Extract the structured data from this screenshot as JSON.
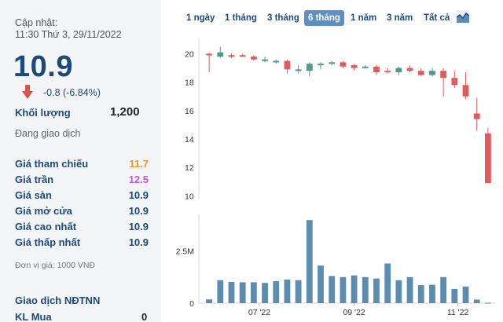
{
  "quote": {
    "updated_label": "Cập nhật:",
    "updated_time": "11:30 Thứ 3, 29/11/2022",
    "price": "10.9",
    "change": "-0.8 (-6.84%)",
    "volume_label": "Khối lượng",
    "volume_value": "1,200",
    "status": "Đang giao dịch",
    "rows": [
      {
        "label": "Giá tham chiếu",
        "value": "11.7",
        "color": "#e8952a"
      },
      {
        "label": "Giá trần",
        "value": "12.5",
        "color": "#c057d6"
      },
      {
        "label": "Giá sàn",
        "value": "10.9",
        "color": "#1c4a7a"
      },
      {
        "label": "Giá mở cửa",
        "value": "10.9",
        "color": "#1c4a7a"
      },
      {
        "label": "Giá cao nhất",
        "value": "10.9",
        "color": "#1c4a7a"
      },
      {
        "label": "Giá thấp nhất",
        "value": "10.9",
        "color": "#1c4a7a"
      }
    ],
    "unit_note": "Đơn vị giá: 1000 VNĐ",
    "foreign_label": "Giao dịch NĐTNN",
    "buy_label": "KL Mua",
    "buy_value": "0"
  },
  "tabs": [
    {
      "label": "1 ngày",
      "active": false
    },
    {
      "label": "1 tháng",
      "active": false
    },
    {
      "label": "3 tháng",
      "active": false
    },
    {
      "label": "6 tháng",
      "active": true
    },
    {
      "label": "1 năm",
      "active": false
    },
    {
      "label": "3 năm",
      "active": false
    },
    {
      "label": "Tất cả",
      "active": false
    }
  ],
  "colors": {
    "up": "#4f9a8a",
    "down": "#e05c5c",
    "volume": "#5b8db3",
    "accent": "#1c4a7a"
  },
  "chart_data": {
    "type": "candlestick",
    "price_axis": {
      "ticks": [
        10,
        12,
        14,
        16,
        18,
        20
      ],
      "range": [
        9.8,
        20.8
      ]
    },
    "volume_axis": {
      "ticks": [
        "0",
        "2.5M"
      ],
      "tick_values": [
        0,
        2500000
      ],
      "range": [
        0,
        3800000
      ]
    },
    "x_tick_labels": [
      {
        "label": "07 '22",
        "index": 4.5
      },
      {
        "label": "09 '22",
        "index": 13
      },
      {
        "label": "11 '22",
        "index": 22.3
      }
    ],
    "candles": [
      {
        "o": 20.0,
        "c": 19.9,
        "h": 20.1,
        "l": 18.7
      },
      {
        "o": 19.8,
        "c": 20.1,
        "h": 20.5,
        "l": 19.7
      },
      {
        "o": 19.9,
        "c": 19.8,
        "h": 20.0,
        "l": 19.7
      },
      {
        "o": 19.9,
        "c": 19.8,
        "h": 20.0,
        "l": 19.8
      },
      {
        "o": 19.8,
        "c": 19.6,
        "h": 19.9,
        "l": 19.5
      },
      {
        "o": 19.6,
        "c": 19.6,
        "h": 19.8,
        "l": 19.4
      },
      {
        "o": 19.5,
        "c": 19.5,
        "h": 19.6,
        "l": 19.3
      },
      {
        "o": 19.5,
        "c": 18.9,
        "h": 19.6,
        "l": 18.6
      },
      {
        "o": 18.9,
        "c": 18.9,
        "h": 19.2,
        "l": 18.6
      },
      {
        "o": 18.8,
        "c": 19.3,
        "h": 19.4,
        "l": 18.4
      },
      {
        "o": 19.3,
        "c": 19.3,
        "h": 19.4,
        "l": 18.9
      },
      {
        "o": 19.3,
        "c": 19.4,
        "h": 19.5,
        "l": 19.2
      },
      {
        "o": 19.4,
        "c": 19.1,
        "h": 19.5,
        "l": 19.0
      },
      {
        "o": 19.2,
        "c": 19.0,
        "h": 19.3,
        "l": 18.8
      },
      {
        "o": 19.1,
        "c": 19.1,
        "h": 19.2,
        "l": 19.0
      },
      {
        "o": 19.1,
        "c": 18.7,
        "h": 19.2,
        "l": 18.5
      },
      {
        "o": 18.8,
        "c": 18.7,
        "h": 19.0,
        "l": 18.6
      },
      {
        "o": 18.7,
        "c": 19.0,
        "h": 19.1,
        "l": 18.5
      },
      {
        "o": 19.0,
        "c": 18.8,
        "h": 19.2,
        "l": 18.7
      },
      {
        "o": 18.8,
        "c": 18.5,
        "h": 19.0,
        "l": 18.4
      },
      {
        "o": 18.5,
        "c": 18.8,
        "h": 19.0,
        "l": 18.4
      },
      {
        "o": 18.8,
        "c": 18.3,
        "h": 19.0,
        "l": 17.0
      },
      {
        "o": 18.3,
        "c": 17.8,
        "h": 18.8,
        "l": 17.6
      },
      {
        "o": 17.8,
        "c": 17.0,
        "h": 18.7,
        "l": 16.8
      },
      {
        "o": 15.8,
        "c": 15.4,
        "h": 16.9,
        "l": 14.6
      },
      {
        "o": 14.4,
        "c": 10.9,
        "h": 14.8,
        "l": 10.9
      }
    ],
    "volumes": [
      180000,
      1100000,
      1020000,
      1000000,
      1000000,
      970000,
      1050000,
      1130000,
      1100000,
      3980000,
      1800000,
      1300000,
      1250000,
      1330000,
      1250000,
      1180000,
      1900000,
      1100000,
      1250000,
      860000,
      880000,
      1250000,
      680000,
      800000,
      170000,
      20000
    ]
  }
}
